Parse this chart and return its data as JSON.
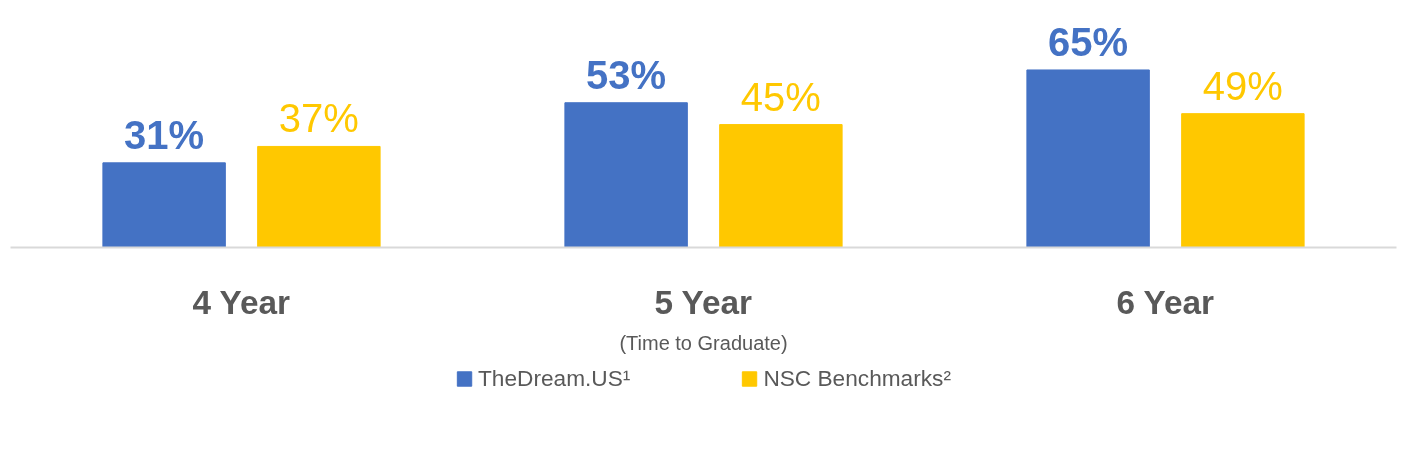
{
  "chart_data": {
    "type": "bar",
    "categories": [
      "4 Year",
      "5 Year",
      "6 Year"
    ],
    "xlabel": "(Time to Graduate)",
    "legend": "bottom",
    "series": [
      {
        "name": "TheDream.US¹",
        "color": "#4472c4",
        "values": [
          31,
          53,
          65
        ],
        "value_labels": [
          "31%",
          "53%",
          "65%"
        ]
      },
      {
        "name": "NSC Benchmarks²",
        "color": "#ffc800",
        "values": [
          37,
          45,
          49
        ],
        "value_labels": [
          "37%",
          "45%",
          "49%"
        ]
      }
    ]
  }
}
